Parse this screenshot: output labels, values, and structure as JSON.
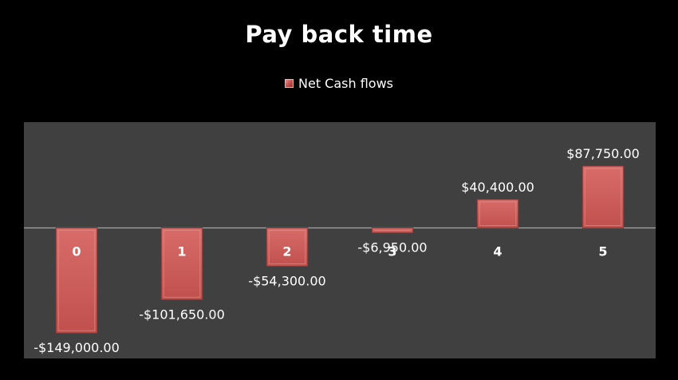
{
  "chart_data": {
    "type": "bar",
    "title": "Pay back time",
    "xlabel": "",
    "ylabel": "",
    "categories": [
      "0",
      "1",
      "2",
      "3",
      "4",
      "5"
    ],
    "series": [
      {
        "name": "Net Cash flows",
        "values": [
          -149000,
          -101650,
          -54300,
          -6950,
          40400,
          87750
        ],
        "labels": [
          "-$149,000.00",
          "-$101,650.00",
          "-$54,300.00",
          "-$6,950.00",
          "$40,400.00",
          "$87,750.00"
        ],
        "color": "#c0504d"
      }
    ],
    "ylim": [
      -185000,
      150000
    ],
    "grid": false,
    "legend_position": "top",
    "plot_background": "#404040",
    "page_background": "#000000"
  }
}
